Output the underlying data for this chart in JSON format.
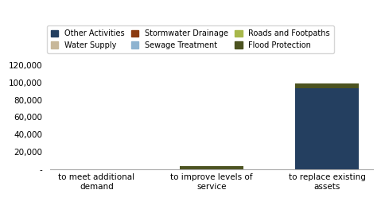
{
  "categories": [
    "to meet additional\ndemand",
    "to improve levels of\nservice",
    "to replace existing\nassets"
  ],
  "series": [
    {
      "name": "Other Activities",
      "color": "#243F60",
      "values": [
        0,
        0,
        93000
      ]
    },
    {
      "name": "Water Supply",
      "color": "#C8B89A",
      "values": [
        0,
        0,
        0
      ]
    },
    {
      "name": "Stormwater Drainage",
      "color": "#8B3A10",
      "values": [
        0,
        0,
        0
      ]
    },
    {
      "name": "Sewage Treatment",
      "color": "#8DB3D0",
      "values": [
        0,
        0,
        0
      ]
    },
    {
      "name": "Roads and Footpaths",
      "color": "#A8B84B",
      "values": [
        0,
        0,
        0
      ]
    },
    {
      "name": "Flood Protection",
      "color": "#4C5320",
      "values": [
        0,
        3500,
        5500
      ]
    }
  ],
  "ylim": [
    0,
    120000
  ],
  "yticks": [
    0,
    20000,
    40000,
    60000,
    80000,
    100000,
    120000
  ],
  "bar_width": 0.55,
  "background_color": "#FFFFFF",
  "legend_ncol": 3,
  "figsize": [
    4.84,
    2.73
  ],
  "dpi": 100
}
